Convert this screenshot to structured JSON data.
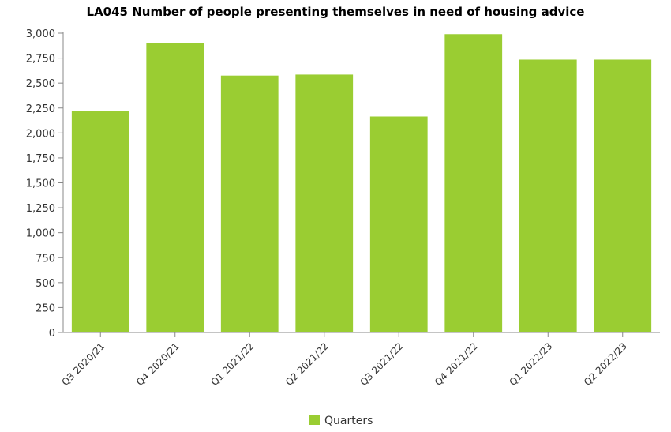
{
  "chart_data": {
    "type": "bar",
    "title": "LA045 Number of people presenting themselves in need of housing advice",
    "categories": [
      "Q3 2020/21",
      "Q4 2020/21",
      "Q1 2021/22",
      "Q2 2021/22",
      "Q3 2021/22",
      "Q4 2021/22",
      "Q1 2022/23",
      "Q2 2022/23"
    ],
    "series": [
      {
        "name": "Quarters",
        "values": [
          2220,
          2900,
          2575,
          2585,
          2165,
          2990,
          2735,
          2735
        ],
        "color": "#9acd32"
      }
    ],
    "ylim": [
      0,
      3000
    ],
    "yticks": [
      0,
      250,
      500,
      750,
      1000,
      1250,
      1500,
      1750,
      2000,
      2250,
      2500,
      2750,
      3000
    ],
    "ytick_labels": [
      "0",
      "250",
      "500",
      "750",
      "1,000",
      "1,250",
      "1,500",
      "1,750",
      "2,000",
      "2,250",
      "2,500",
      "2,750",
      "3,000"
    ],
    "xlabel": "",
    "ylabel": "",
    "grid": false,
    "legend": "bottom-center"
  }
}
